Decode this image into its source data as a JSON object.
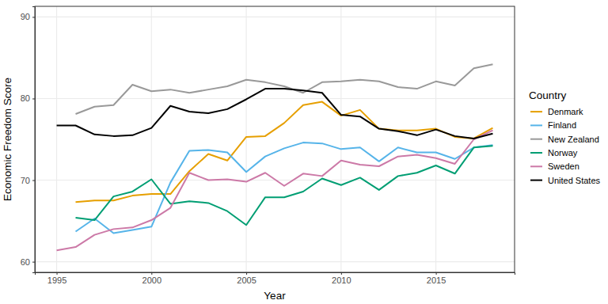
{
  "chart_data": {
    "type": "line",
    "x_label": "Year",
    "y_label": "Economic Freedom Score",
    "legend_title": "Country",
    "legend": "right",
    "grid": true,
    "x": [
      1995,
      1996,
      1997,
      1998,
      1999,
      2000,
      2001,
      2002,
      2003,
      2004,
      2005,
      2006,
      2007,
      2008,
      2009,
      2010,
      2011,
      2012,
      2013,
      2014,
      2015,
      2016,
      2017,
      2018
    ],
    "xlim": [
      1993.85,
      2019.15
    ],
    "xticks": [
      1995,
      2000,
      2005,
      2010,
      2015
    ],
    "ylim": [
      58.7,
      91.3
    ],
    "yticks": [
      60,
      70,
      80,
      90
    ],
    "series": [
      {
        "name": "Denmark",
        "color": "#E69F00",
        "values": [
          null,
          67.3,
          67.5,
          67.5,
          68.1,
          68.3,
          68.3,
          71.1,
          73.2,
          72.4,
          75.3,
          75.4,
          77.0,
          79.2,
          79.6,
          77.9,
          78.6,
          76.3,
          76.1,
          76.1,
          76.3,
          75.3,
          75.1,
          76.4
        ]
      },
      {
        "name": "Finland",
        "color": "#56B4E9",
        "values": [
          null,
          63.7,
          65.3,
          63.5,
          63.9,
          64.3,
          69.7,
          73.6,
          73.7,
          73.4,
          71.0,
          72.9,
          73.9,
          74.6,
          74.5,
          73.8,
          74.0,
          72.3,
          74.0,
          73.4,
          73.4,
          72.6,
          74.0,
          74.3
        ]
      },
      {
        "name": "New Zealand",
        "color": "#999999",
        "values": [
          null,
          78.1,
          79.0,
          79.2,
          81.7,
          80.9,
          81.1,
          80.7,
          81.1,
          81.5,
          82.3,
          82.0,
          81.5,
          80.7,
          82.0,
          82.1,
          82.3,
          82.1,
          81.4,
          81.2,
          82.1,
          81.6,
          83.7,
          84.2
        ]
      },
      {
        "name": "Norway",
        "color": "#009E73",
        "values": [
          null,
          65.4,
          65.1,
          68.0,
          68.6,
          70.1,
          67.1,
          67.4,
          67.2,
          66.2,
          64.5,
          67.9,
          67.9,
          68.6,
          70.2,
          69.4,
          70.3,
          68.8,
          70.5,
          70.9,
          71.8,
          70.8,
          74.0,
          74.2
        ]
      },
      {
        "name": "Sweden",
        "color": "#CC79A7",
        "values": [
          61.4,
          61.8,
          63.3,
          64.0,
          64.2,
          65.1,
          66.6,
          70.9,
          70.0,
          70.1,
          69.8,
          70.9,
          69.3,
          70.8,
          70.5,
          72.4,
          71.9,
          71.7,
          72.9,
          73.1,
          72.7,
          72.0,
          75.0,
          76.1
        ]
      },
      {
        "name": "United States",
        "color": "#000000",
        "values": [
          76.7,
          76.7,
          75.6,
          75.4,
          75.5,
          76.4,
          79.1,
          78.4,
          78.2,
          78.7,
          79.9,
          81.2,
          81.2,
          81.0,
          80.7,
          78.0,
          77.8,
          76.3,
          76.0,
          75.5,
          76.2,
          75.4,
          75.1,
          75.7
        ]
      }
    ]
  }
}
